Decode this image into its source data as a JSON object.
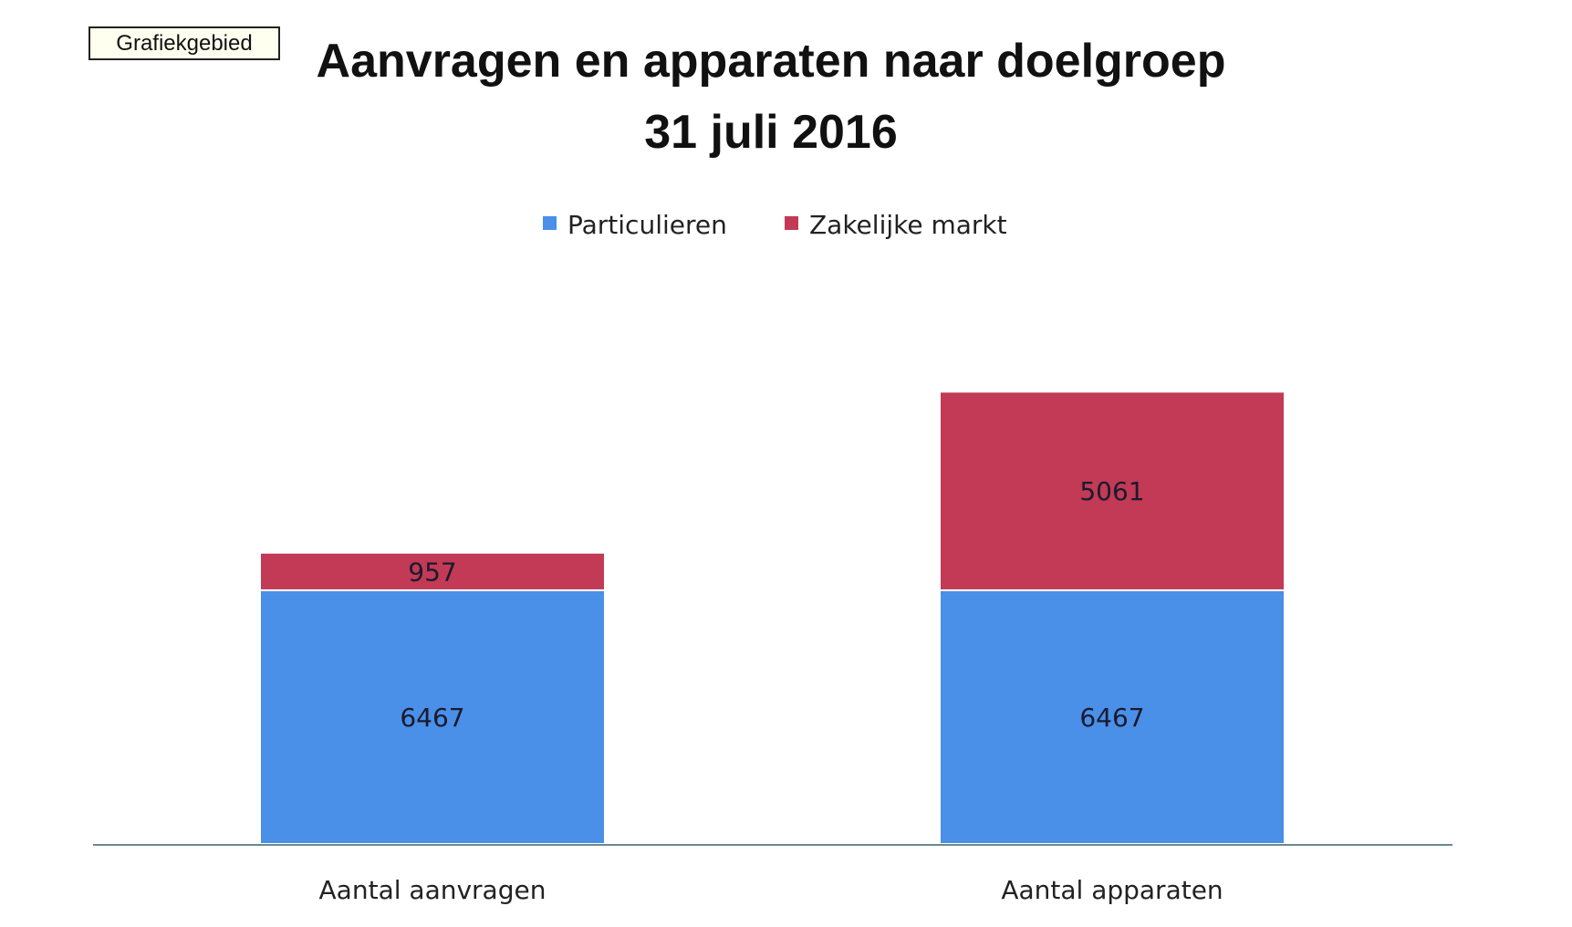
{
  "tooltip": "Grafiekgebied",
  "chart_data": {
    "type": "bar",
    "stacked": true,
    "title": "Aanvragen en apparaten naar doelgroep",
    "subtitle": "31 juli 2016",
    "categories": [
      "Aantal aanvragen",
      "Aantal apparaten"
    ],
    "series": [
      {
        "name": "Particulieren",
        "values": [
          6467,
          6467
        ],
        "color": "#4a8fe8"
      },
      {
        "name": "Zakelijke markt",
        "values": [
          957,
          5061
        ],
        "color": "#c23a55"
      }
    ],
    "legend": "top",
    "grid": false,
    "data_labels": true
  }
}
